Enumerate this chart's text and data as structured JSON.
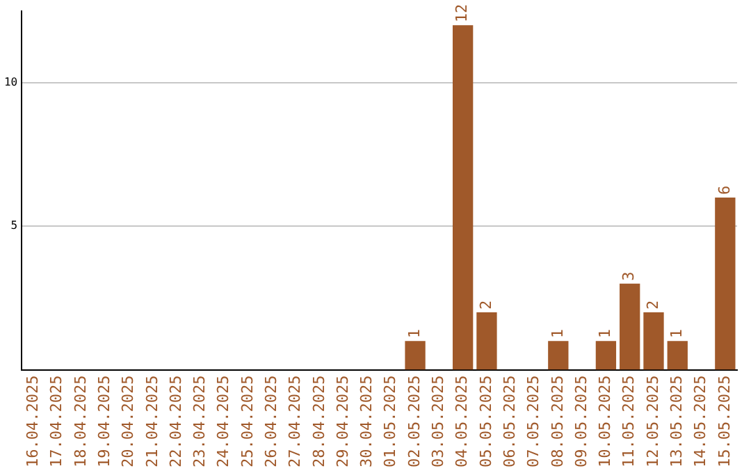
{
  "chart_data": {
    "type": "bar",
    "categories": [
      "16.04.2025",
      "17.04.2025",
      "18.04.2025",
      "19.04.2025",
      "20.04.2025",
      "21.04.2025",
      "22.04.2025",
      "23.04.2025",
      "24.04.2025",
      "25.04.2025",
      "26.04.2025",
      "27.04.2025",
      "28.04.2025",
      "29.04.2025",
      "30.04.2025",
      "01.05.2025",
      "02.05.2025",
      "03.05.2025",
      "04.05.2025",
      "05.05.2025",
      "06.05.2025",
      "07.05.2025",
      "08.05.2025",
      "09.05.2025",
      "10.05.2025",
      "11.05.2025",
      "12.05.2025",
      "13.05.2025",
      "14.05.2025",
      "15.05.2025"
    ],
    "values": [
      0,
      0,
      0,
      0,
      0,
      0,
      0,
      0,
      0,
      0,
      0,
      0,
      0,
      0,
      0,
      0,
      1,
      0,
      12,
      2,
      0,
      0,
      1,
      0,
      1,
      3,
      2,
      1,
      0,
      6
    ],
    "value_labels": [
      null,
      null,
      null,
      null,
      null,
      null,
      null,
      null,
      null,
      null,
      null,
      null,
      null,
      null,
      null,
      null,
      "1",
      null,
      "12",
      "2",
      null,
      null,
      "1",
      null,
      "1",
      "3",
      "2",
      "1",
      null,
      "6"
    ],
    "color": "#a0592a",
    "ylim": [
      0,
      12.5
    ],
    "yticks": [
      5,
      10
    ],
    "grid": "y",
    "legend": false
  }
}
